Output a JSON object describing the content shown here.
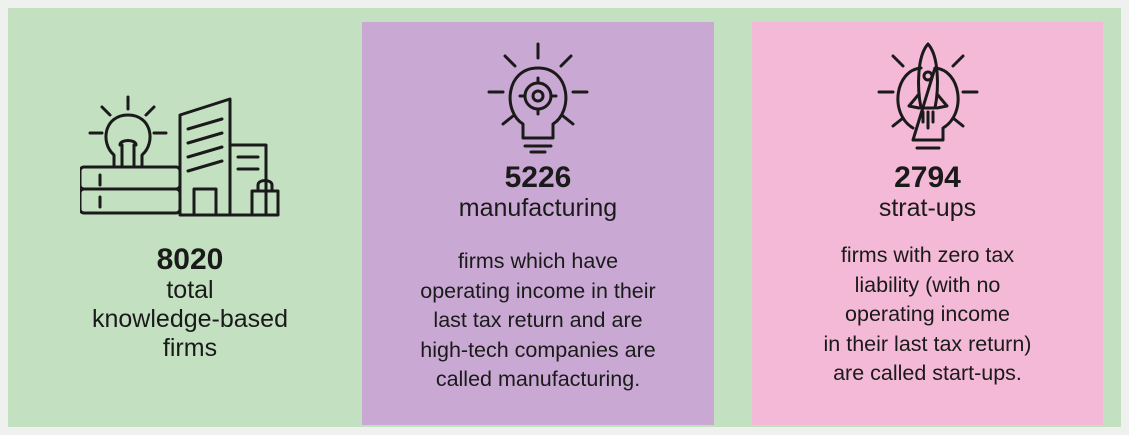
{
  "panels": [
    {
      "number": "8020",
      "label": [
        "total",
        "knowledge-based",
        "firms"
      ],
      "description": []
    },
    {
      "number": "5226",
      "label": [
        "manufacturing"
      ],
      "description": [
        "firms which have",
        "operating income in their",
        "last tax return and are",
        "high-tech companies are",
        "called manufacturing."
      ]
    },
    {
      "number": "2794",
      "label": [
        "strat-ups"
      ],
      "description": [
        "firms with zero tax",
        "liability (with no",
        "operating income",
        "in their last tax return)",
        "are called start-ups."
      ]
    }
  ]
}
